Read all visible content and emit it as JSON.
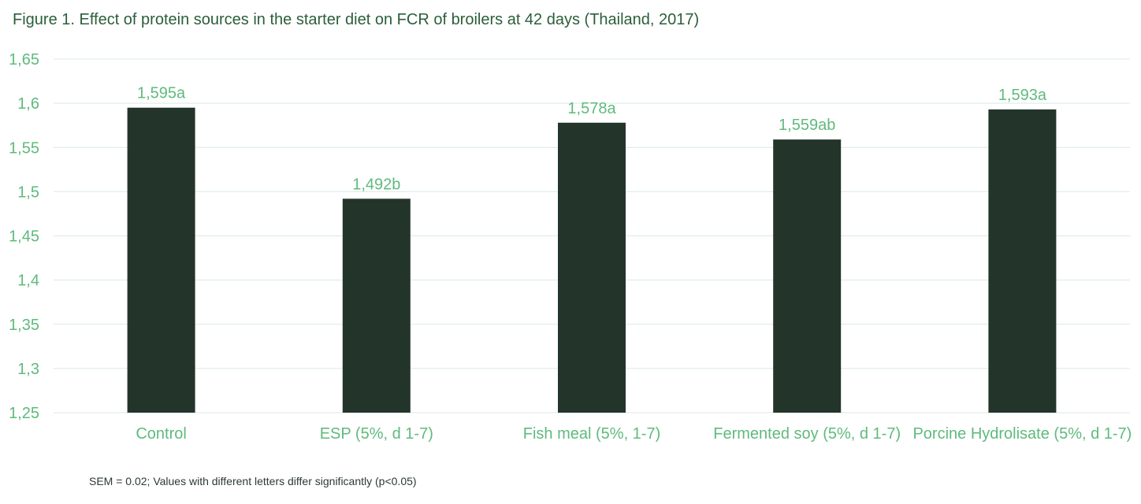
{
  "title": "Figure 1. Effect of protein sources in the starter diet on FCR of broilers at 42 days (Thailand, 2017)",
  "footnote": "SEM = 0.02; Values with different letters differ significantly (p<0.05)",
  "colors": {
    "title": "#2b5e3a",
    "bar": "#23352b",
    "label": "#5fba7d",
    "grid": "#d9e9e2",
    "footnote": "#2b3b30"
  },
  "chart_data": {
    "type": "bar",
    "categories": [
      "Control",
      "ESP (5%, d 1-7)",
      "Fish meal (5%, 1-7)",
      "Fermented soy (5%, d 1-7)",
      "Porcine Hydrolisate (5%, d 1-7)"
    ],
    "values": [
      1.595,
      1.492,
      1.578,
      1.559,
      1.593
    ],
    "data_labels": [
      "1,595a",
      "1,492b",
      "1,578a",
      "1,559ab",
      "1,593a"
    ],
    "ylim": [
      1.25,
      1.65
    ],
    "yticks": [
      1.25,
      1.3,
      1.35,
      1.4,
      1.45,
      1.5,
      1.55,
      1.6,
      1.65
    ],
    "ytick_labels": [
      "1,25",
      "1,3",
      "1,35",
      "1,4",
      "1,45",
      "1,5",
      "1,55",
      "1,6",
      "1,65"
    ],
    "grid": true,
    "legend": "none"
  }
}
